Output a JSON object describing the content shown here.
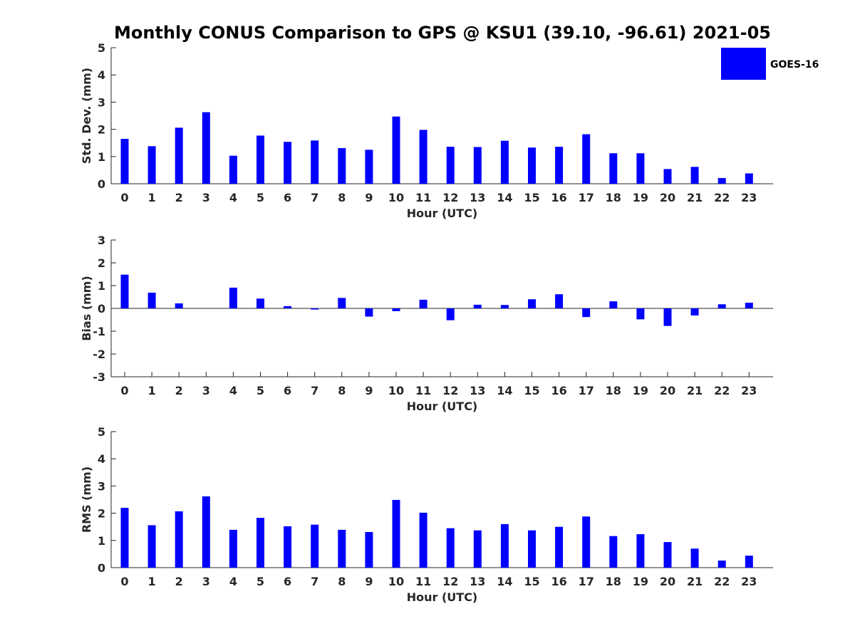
{
  "title": "Monthly CONUS Comparison to GPS @ KSU1 (39.10, -96.61) 2021-05",
  "legend": {
    "label": "GOES-16",
    "color": "#0000ff",
    "placement": "top-right"
  },
  "chart_data": [
    {
      "type": "bar",
      "categories": [
        "0",
        "1",
        "2",
        "3",
        "4",
        "5",
        "6",
        "7",
        "8",
        "9",
        "10",
        "11",
        "12",
        "13",
        "14",
        "15",
        "16",
        "17",
        "18",
        "19",
        "20",
        "21",
        "22",
        "23"
      ],
      "series": [
        {
          "name": "GOES-16",
          "values": [
            1.65,
            1.38,
            2.06,
            2.63,
            1.03,
            1.77,
            1.54,
            1.59,
            1.31,
            1.25,
            2.47,
            1.98,
            1.36,
            1.35,
            1.58,
            1.33,
            1.36,
            1.82,
            1.12,
            1.12,
            0.54,
            0.62,
            0.21,
            0.38
          ]
        }
      ],
      "xlabel": "Hour (UTC)",
      "ylabel": "Std. Dev. (mm)",
      "ylim": [
        0,
        5
      ],
      "yticks": [
        "0",
        "1",
        "2",
        "3",
        "4",
        "5"
      ],
      "zero_line": false
    },
    {
      "type": "bar",
      "categories": [
        "0",
        "1",
        "2",
        "3",
        "4",
        "5",
        "6",
        "7",
        "8",
        "9",
        "10",
        "11",
        "12",
        "13",
        "14",
        "15",
        "16",
        "17",
        "18",
        "19",
        "20",
        "21",
        "22",
        "23"
      ],
      "series": [
        {
          "name": "GOES-16",
          "values": [
            1.48,
            0.69,
            0.22,
            0.0,
            0.91,
            0.43,
            0.1,
            -0.05,
            0.46,
            -0.36,
            -0.12,
            0.38,
            -0.52,
            0.16,
            0.15,
            0.4,
            0.62,
            -0.38,
            0.31,
            -0.48,
            -0.77,
            -0.31,
            0.18,
            0.25
          ]
        }
      ],
      "xlabel": "Hour (UTC)",
      "ylabel": "Bias (mm)",
      "ylim": [
        -3,
        3
      ],
      "yticks": [
        "-3",
        "-2",
        "-1",
        "0",
        "1",
        "2",
        "3"
      ],
      "zero_line": true
    },
    {
      "type": "bar",
      "categories": [
        "0",
        "1",
        "2",
        "3",
        "4",
        "5",
        "6",
        "7",
        "8",
        "9",
        "10",
        "11",
        "12",
        "13",
        "14",
        "15",
        "16",
        "17",
        "18",
        "19",
        "20",
        "21",
        "22",
        "23"
      ],
      "series": [
        {
          "name": "GOES-16",
          "values": [
            2.2,
            1.56,
            2.07,
            2.62,
            1.39,
            1.83,
            1.52,
            1.58,
            1.39,
            1.31,
            2.49,
            2.02,
            1.45,
            1.37,
            1.6,
            1.37,
            1.5,
            1.88,
            1.16,
            1.23,
            0.94,
            0.7,
            0.26,
            0.44
          ]
        }
      ],
      "xlabel": "Hour (UTC)",
      "ylabel": "RMS (mm)",
      "ylim": [
        0,
        5
      ],
      "yticks": [
        "0",
        "1",
        "2",
        "3",
        "4",
        "5"
      ],
      "zero_line": false
    }
  ]
}
